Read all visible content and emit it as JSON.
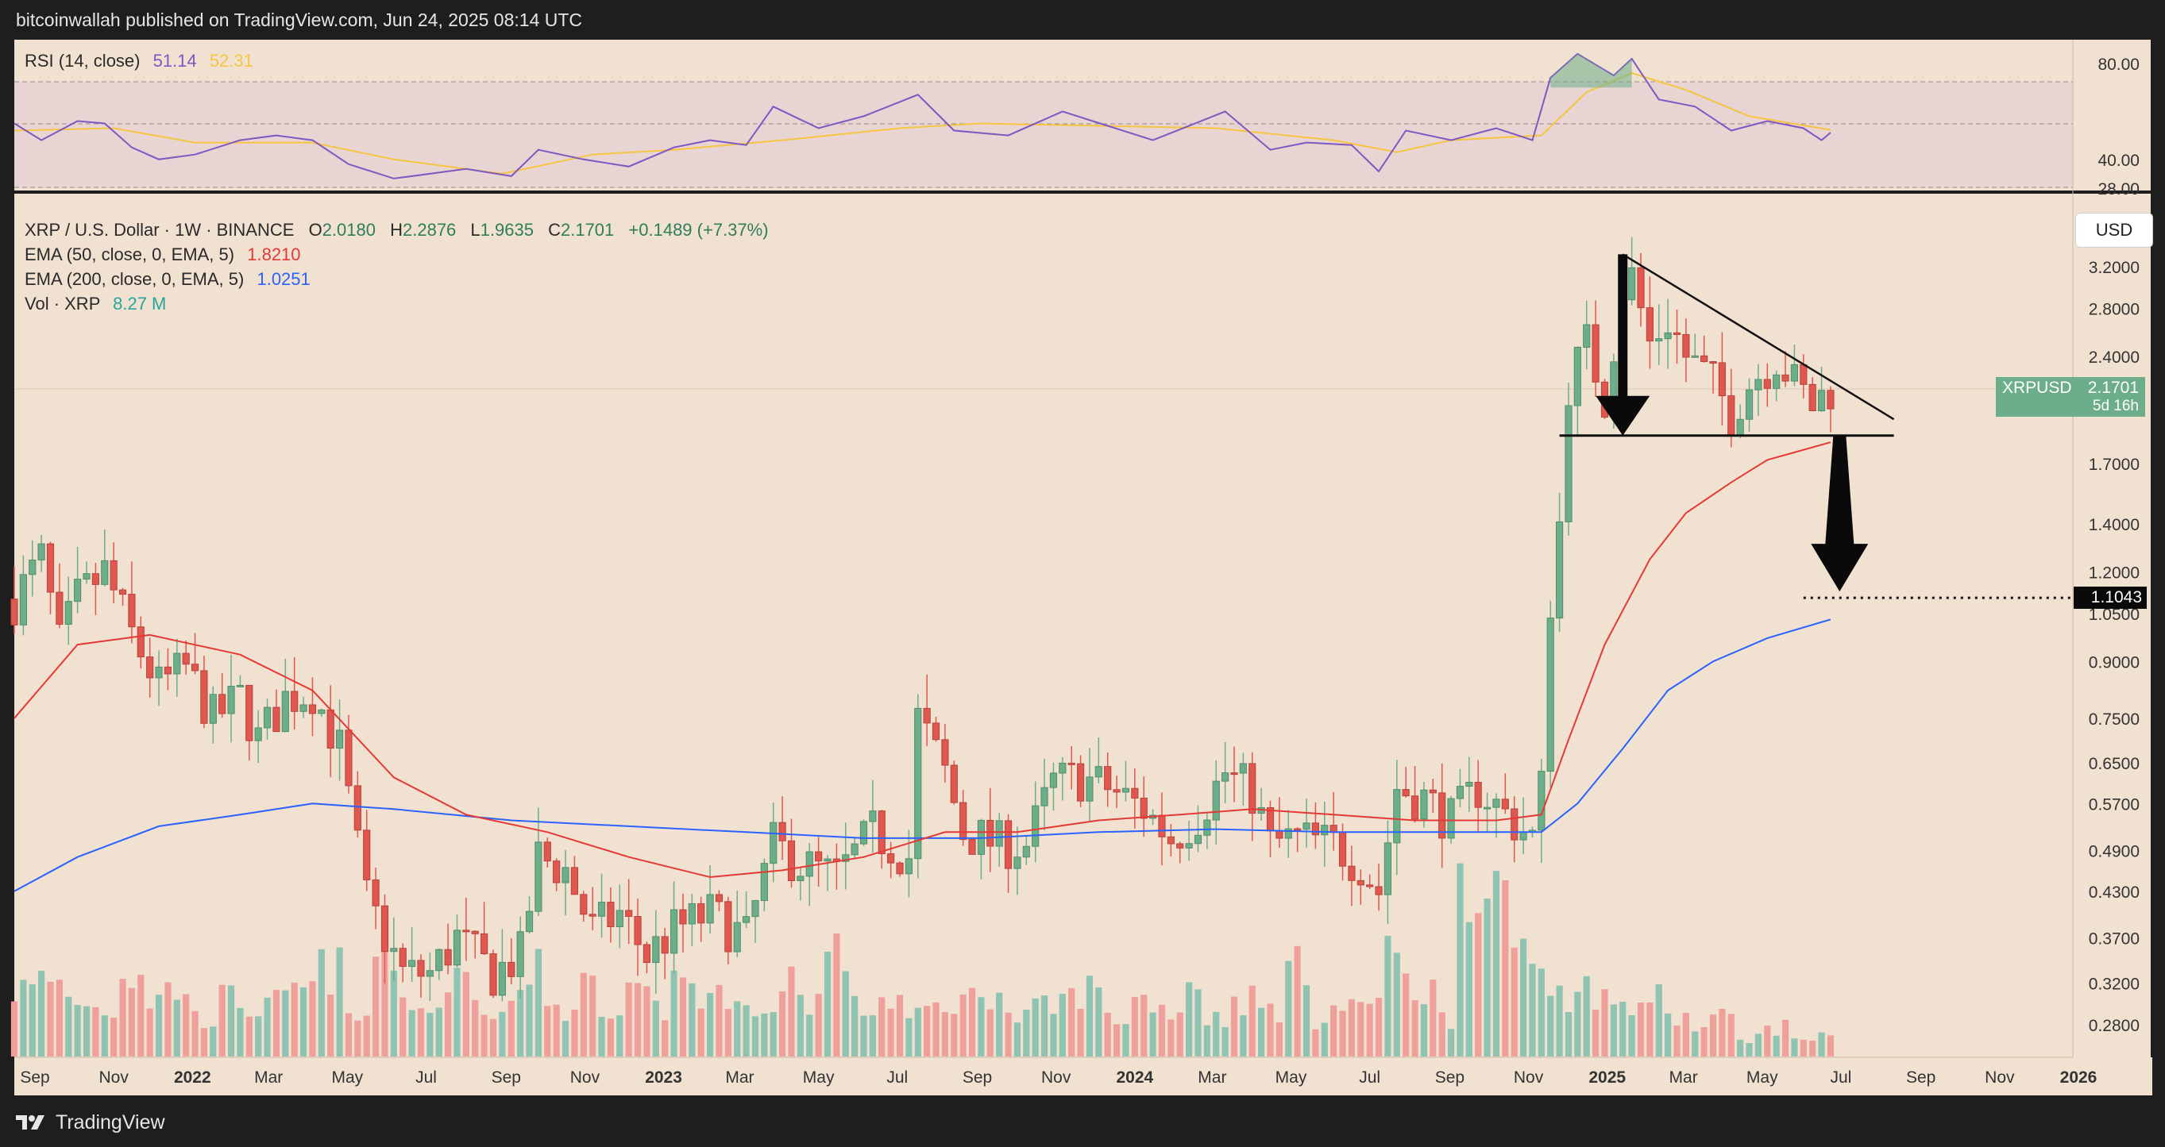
{
  "header": {
    "publisher_text": "bitcoinwallah published on TradingView.com, Jun 24, 2025 08:14 UTC"
  },
  "footer": {
    "brand": "TradingView"
  },
  "rsi_panel": {
    "label": "RSI (14, close)",
    "value": "51.14",
    "ma_value": "52.31",
    "colors": {
      "rsi": "#7e57c2",
      "ma": "#f5c542",
      "band": "#e6d0d0"
    },
    "y_ticks": [
      "80.00",
      "40.00",
      "28.00"
    ]
  },
  "main_panel": {
    "symbol_line": "XRP / U.S. Dollar · 1W · BINANCE",
    "ohlc": {
      "o_label": "O",
      "o": "2.0180",
      "h_label": "H",
      "h": "2.2876",
      "l_label": "L",
      "l": "1.9635",
      "c_label": "C",
      "c": "2.1701",
      "change": "+0.1489 (+7.37%)"
    },
    "ema50": {
      "label": "EMA (50, close, 0, EMA, 5)",
      "value": "1.8210",
      "color": "#e53935"
    },
    "ema200": {
      "label": "EMA (200, close, 0, EMA, 5)",
      "value": "1.0251",
      "color": "#2962ff"
    },
    "volume": {
      "label": "Vol · XRP",
      "value": "8.27 M",
      "color": "#26a69a"
    },
    "currency_button": "USD",
    "price_tag": {
      "symbol": "XRPUSD",
      "value": "2.1701",
      "countdown": "5d 16h"
    },
    "target_tag": "1.1043"
  },
  "colors": {
    "background": "#f1e1d0",
    "up": "#6cae8a",
    "down": "#e0574f",
    "vol_up": "#8fc4b2",
    "vol_down": "#f0a09a",
    "pattern": "#111111"
  },
  "chart_data": {
    "type": "candlestick",
    "timeframe": "1W",
    "y_scale": "log",
    "y_ticks": [
      3.2,
      2.8,
      2.4,
      2.1701,
      1.7,
      1.4,
      1.2,
      1.1043,
      1.05,
      0.9,
      0.75,
      0.65,
      0.57,
      0.49,
      0.43,
      0.37,
      0.32,
      0.28
    ],
    "y_tick_labels": [
      "3.2000",
      "2.8000",
      "2.4000",
      "",
      "1.7000",
      "1.4000",
      "1.2000",
      "",
      "1.0500",
      "0.9000",
      "0.7500",
      "0.6500",
      "0.5700",
      "0.4900",
      "0.4300",
      "0.3700",
      "0.3200",
      "0.2800"
    ],
    "x_ticks": [
      {
        "date": "2021-09-01",
        "label": "Sep"
      },
      {
        "date": "2021-11-01",
        "label": "Nov"
      },
      {
        "date": "2022-01-01",
        "label": "2022"
      },
      {
        "date": "2022-03-01",
        "label": "Mar"
      },
      {
        "date": "2022-05-01",
        "label": "May"
      },
      {
        "date": "2022-07-01",
        "label": "Jul"
      },
      {
        "date": "2022-09-01",
        "label": "Sep"
      },
      {
        "date": "2022-11-01",
        "label": "Nov"
      },
      {
        "date": "2023-01-01",
        "label": "2023"
      },
      {
        "date": "2023-03-01",
        "label": "Mar"
      },
      {
        "date": "2023-05-01",
        "label": "May"
      },
      {
        "date": "2023-07-01",
        "label": "Jul"
      },
      {
        "date": "2023-09-01",
        "label": "Sep"
      },
      {
        "date": "2023-11-01",
        "label": "Nov"
      },
      {
        "date": "2024-01-01",
        "label": "2024"
      },
      {
        "date": "2024-03-01",
        "label": "Mar"
      },
      {
        "date": "2024-05-01",
        "label": "May"
      },
      {
        "date": "2024-07-01",
        "label": "Jul"
      },
      {
        "date": "2024-09-01",
        "label": "Sep"
      },
      {
        "date": "2024-11-01",
        "label": "Nov"
      },
      {
        "date": "2025-01-01",
        "label": "2025"
      },
      {
        "date": "2025-03-01",
        "label": "Mar"
      },
      {
        "date": "2025-05-01",
        "label": "May"
      },
      {
        "date": "2025-07-01",
        "label": "Jul"
      },
      {
        "date": "2025-09-01",
        "label": "Sep"
      },
      {
        "date": "2025-11-01",
        "label": "Nov"
      },
      {
        "date": "2026-01-01",
        "label": "2026"
      }
    ],
    "price_path": [
      [
        "2021-08-16",
        1.1
      ],
      [
        "2021-09-06",
        1.25
      ],
      [
        "2021-09-20",
        0.95
      ],
      [
        "2021-10-04",
        1.1
      ],
      [
        "2021-10-25",
        1.2
      ],
      [
        "2021-11-15",
        0.98
      ],
      [
        "2021-12-06",
        0.83
      ],
      [
        "2021-12-27",
        0.88
      ],
      [
        "2022-01-17",
        0.75
      ],
      [
        "2022-02-07",
        0.8
      ],
      [
        "2022-02-21",
        0.7
      ],
      [
        "2022-03-14",
        0.8
      ],
      [
        "2022-04-04",
        0.82
      ],
      [
        "2022-04-25",
        0.68
      ],
      [
        "2022-05-16",
        0.42
      ],
      [
        "2022-06-13",
        0.33
      ],
      [
        "2022-07-04",
        0.33
      ],
      [
        "2022-07-25",
        0.37
      ],
      [
        "2022-08-22",
        0.33
      ],
      [
        "2022-09-12",
        0.35
      ],
      [
        "2022-09-26",
        0.48
      ],
      [
        "2022-10-17",
        0.46
      ],
      [
        "2022-11-07",
        0.38
      ],
      [
        "2022-11-28",
        0.4
      ],
      [
        "2022-12-19",
        0.35
      ],
      [
        "2023-01-09",
        0.38
      ],
      [
        "2023-02-06",
        0.4
      ],
      [
        "2023-03-06",
        0.37
      ],
      [
        "2023-03-27",
        0.5
      ],
      [
        "2023-04-17",
        0.47
      ],
      [
        "2023-05-15",
        0.45
      ],
      [
        "2023-06-12",
        0.52
      ],
      [
        "2023-07-10",
        0.48
      ],
      [
        "2023-07-17",
        0.75
      ],
      [
        "2023-08-07",
        0.63
      ],
      [
        "2023-08-21",
        0.52
      ],
      [
        "2023-09-18",
        0.5
      ],
      [
        "2023-10-09",
        0.5
      ],
      [
        "2023-10-30",
        0.61
      ],
      [
        "2023-11-20",
        0.62
      ],
      [
        "2023-12-11",
        0.6
      ],
      [
        "2024-01-08",
        0.56
      ],
      [
        "2024-01-29",
        0.51
      ],
      [
        "2024-02-19",
        0.55
      ],
      [
        "2024-03-11",
        0.63
      ],
      [
        "2024-04-01",
        0.59
      ],
      [
        "2024-04-15",
        0.5
      ],
      [
        "2024-05-06",
        0.51
      ],
      [
        "2024-06-03",
        0.5
      ],
      [
        "2024-06-24",
        0.47
      ],
      [
        "2024-07-08",
        0.43
      ],
      [
        "2024-07-22",
        0.6
      ],
      [
        "2024-08-12",
        0.58
      ],
      [
        "2024-09-02",
        0.54
      ],
      [
        "2024-09-23",
        0.6
      ],
      [
        "2024-10-14",
        0.55
      ],
      [
        "2024-11-04",
        0.51
      ],
      [
        "2024-11-11",
        0.6
      ],
      [
        "2024-11-18",
        1.1
      ],
      [
        "2024-11-25",
        1.4
      ],
      [
        "2024-12-02",
        2.2
      ],
      [
        "2024-12-16",
        2.5
      ],
      [
        "2024-12-30",
        2.1
      ],
      [
        "2025-01-13",
        3.0
      ],
      [
        "2025-01-20",
        3.1
      ],
      [
        "2025-02-03",
        2.5
      ],
      [
        "2025-02-17",
        2.7
      ],
      [
        "2025-03-03",
        2.4
      ],
      [
        "2025-03-24",
        2.2
      ],
      [
        "2025-04-07",
        2.0
      ],
      [
        "2025-04-21",
        2.2
      ],
      [
        "2025-05-12",
        2.4
      ],
      [
        "2025-05-26",
        2.2
      ],
      [
        "2025-06-09",
        2.05
      ],
      [
        "2025-06-23",
        2.17
      ]
    ],
    "ema50_path": [
      [
        "2021-08-16",
        0.75
      ],
      [
        "2021-10-04",
        0.95
      ],
      [
        "2021-11-29",
        0.98
      ],
      [
        "2022-02-07",
        0.92
      ],
      [
        "2022-04-04",
        0.82
      ],
      [
        "2022-06-06",
        0.62
      ],
      [
        "2022-08-01",
        0.55
      ],
      [
        "2022-10-03",
        0.52
      ],
      [
        "2022-12-05",
        0.48
      ],
      [
        "2023-02-06",
        0.45
      ],
      [
        "2023-04-03",
        0.46
      ],
      [
        "2023-06-05",
        0.48
      ],
      [
        "2023-08-07",
        0.52
      ],
      [
        "2023-10-02",
        0.52
      ],
      [
        "2023-12-04",
        0.54
      ],
      [
        "2024-02-05",
        0.55
      ],
      [
        "2024-04-01",
        0.56
      ],
      [
        "2024-06-03",
        0.55
      ],
      [
        "2024-08-05",
        0.54
      ],
      [
        "2024-10-07",
        0.54
      ],
      [
        "2024-11-11",
        0.55
      ],
      [
        "2024-12-02",
        0.7
      ],
      [
        "2024-12-30",
        0.95
      ],
      [
        "2025-02-03",
        1.25
      ],
      [
        "2025-03-03",
        1.45
      ],
      [
        "2025-04-07",
        1.6
      ],
      [
        "2025-05-05",
        1.72
      ],
      [
        "2025-06-23",
        1.82
      ]
    ],
    "ema200_path": [
      [
        "2021-08-16",
        0.43
      ],
      [
        "2021-10-04",
        0.48
      ],
      [
        "2021-12-06",
        0.53
      ],
      [
        "2022-02-07",
        0.55
      ],
      [
        "2022-04-04",
        0.57
      ],
      [
        "2022-06-06",
        0.56
      ],
      [
        "2022-09-05",
        0.54
      ],
      [
        "2022-12-05",
        0.53
      ],
      [
        "2023-03-06",
        0.52
      ],
      [
        "2023-06-05",
        0.51
      ],
      [
        "2023-09-04",
        0.51
      ],
      [
        "2023-12-04",
        0.52
      ],
      [
        "2024-03-04",
        0.525
      ],
      [
        "2024-06-03",
        0.52
      ],
      [
        "2024-09-02",
        0.52
      ],
      [
        "2024-11-11",
        0.52
      ],
      [
        "2024-12-09",
        0.57
      ],
      [
        "2025-01-13",
        0.68
      ],
      [
        "2025-02-17",
        0.82
      ],
      [
        "2025-03-24",
        0.9
      ],
      [
        "2025-05-05",
        0.97
      ],
      [
        "2025-06-23",
        1.03
      ]
    ],
    "volume_relative": [
      0.35,
      0.4,
      0.3,
      0.25,
      0.45,
      0.3,
      0.35,
      0.2,
      0.3,
      0.25,
      0.28,
      0.35,
      0.45,
      0.2,
      0.55,
      0.3,
      0.25,
      0.4,
      0.28,
      0.3,
      0.45,
      0.25,
      0.35,
      0.2,
      0.3,
      0.25,
      0.4,
      0.3,
      0.35,
      0.2,
      0.45,
      0.3,
      0.55,
      0.25,
      0.3,
      0.2,
      0.25,
      0.3,
      0.35,
      0.2,
      0.25,
      0.3,
      0.35,
      0.2,
      0.3,
      0.25,
      0.4,
      0.2,
      0.3,
      0.25,
      0.45,
      0.2,
      0.25,
      0.3,
      0.5,
      0.35,
      0.2,
      1.0,
      0.75,
      0.6,
      0.45,
      0.3,
      0.35,
      0.25,
      0.3,
      0.2,
      0.15,
      0.2,
      0.1,
      0.15,
      0.1,
      0.1
    ],
    "pattern": {
      "type": "descending triangle",
      "resistance": [
        [
          "2025-01-13",
          3.33
        ],
        [
          "2025-08-11",
          1.96
        ]
      ],
      "support": [
        [
          "2024-11-25",
          1.86
        ],
        [
          "2025-08-11",
          1.86
        ]
      ],
      "target": 1.1043
    },
    "rsi_path": [
      [
        "2021-08-16",
        55
      ],
      [
        "2021-09-06",
        48
      ],
      [
        "2021-10-04",
        56
      ],
      [
        "2021-10-25",
        55
      ],
      [
        "2021-11-15",
        45
      ],
      [
        "2021-12-06",
        40
      ],
      [
        "2022-01-03",
        42
      ],
      [
        "2022-02-07",
        48
      ],
      [
        "2022-03-07",
        50
      ],
      [
        "2022-04-04",
        48
      ],
      [
        "2022-05-02",
        38
      ],
      [
        "2022-06-06",
        32
      ],
      [
        "2022-07-04",
        34
      ],
      [
        "2022-08-01",
        36
      ],
      [
        "2022-09-05",
        33
      ],
      [
        "2022-09-26",
        44
      ],
      [
        "2022-10-31",
        40
      ],
      [
        "2022-12-05",
        37
      ],
      [
        "2023-01-09",
        45
      ],
      [
        "2023-02-06",
        48
      ],
      [
        "2023-03-06",
        46
      ],
      [
        "2023-03-27",
        62
      ],
      [
        "2023-05-01",
        53
      ],
      [
        "2023-06-05",
        58
      ],
      [
        "2023-07-17",
        67
      ],
      [
        "2023-08-14",
        52
      ],
      [
        "2023-09-25",
        50
      ],
      [
        "2023-11-06",
        60
      ],
      [
        "2023-12-11",
        54
      ],
      [
        "2024-01-15",
        48
      ],
      [
        "2024-03-11",
        60
      ],
      [
        "2024-04-15",
        44
      ],
      [
        "2024-05-13",
        47
      ],
      [
        "2024-06-17",
        46
      ],
      [
        "2024-07-08",
        35
      ],
      [
        "2024-07-29",
        52
      ],
      [
        "2024-09-02",
        48
      ],
      [
        "2024-10-07",
        53
      ],
      [
        "2024-11-04",
        48
      ],
      [
        "2024-11-18",
        74
      ],
      [
        "2024-12-09",
        84
      ],
      [
        "2025-01-06",
        75
      ],
      [
        "2025-01-20",
        82
      ],
      [
        "2025-02-10",
        65
      ],
      [
        "2025-03-10",
        62
      ],
      [
        "2025-04-07",
        52
      ],
      [
        "2025-05-05",
        56
      ],
      [
        "2025-06-02",
        53
      ],
      [
        "2025-06-16",
        48
      ],
      [
        "2025-06-23",
        51.14
      ]
    ],
    "rsi_ma_path": [
      [
        "2021-08-16",
        52
      ],
      [
        "2021-11-01",
        53
      ],
      [
        "2022-01-03",
        47
      ],
      [
        "2022-04-04",
        47
      ],
      [
        "2022-06-06",
        40
      ],
      [
        "2022-08-29",
        34
      ],
      [
        "2022-11-07",
        42
      ],
      [
        "2023-01-09",
        44
      ],
      [
        "2023-04-03",
        48
      ],
      [
        "2023-07-03",
        53
      ],
      [
        "2023-09-04",
        55
      ],
      [
        "2023-12-04",
        54
      ],
      [
        "2024-03-04",
        53
      ],
      [
        "2024-06-03",
        48
      ],
      [
        "2024-07-22",
        43
      ],
      [
        "2024-09-02",
        48
      ],
      [
        "2024-11-11",
        50
      ],
      [
        "2024-12-16",
        68
      ],
      [
        "2025-01-20",
        76
      ],
      [
        "2025-03-03",
        69
      ],
      [
        "2025-04-21",
        58
      ],
      [
        "2025-06-23",
        52.31
      ]
    ],
    "rsi_ylim": [
      26,
      88
    ],
    "rsi_bands": [
      30,
      70
    ]
  }
}
